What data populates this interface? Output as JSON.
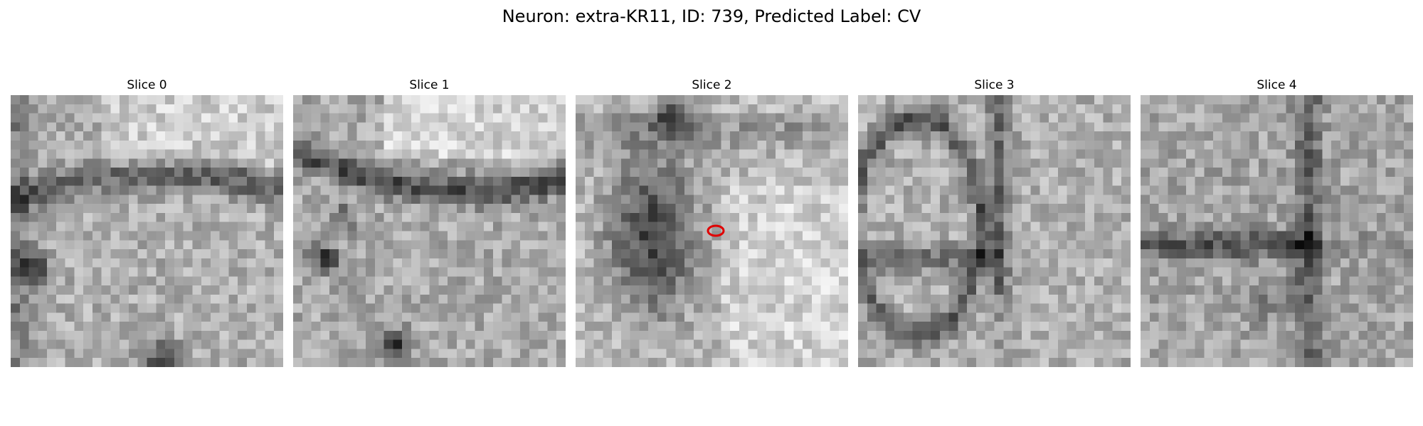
{
  "figure": {
    "title": "Neuron: extra-KR11, ID: 739, Predicted Label: CV"
  },
  "slices": [
    {
      "label": "Slice 0",
      "image_type": "grayscale-em-patch",
      "marker": false
    },
    {
      "label": "Slice 1",
      "image_type": "grayscale-em-patch",
      "marker": false
    },
    {
      "label": "Slice 2",
      "image_type": "grayscale-em-patch",
      "marker": true
    },
    {
      "label": "Slice 3",
      "image_type": "grayscale-em-patch",
      "marker": false
    },
    {
      "label": "Slice 4",
      "image_type": "grayscale-em-patch",
      "marker": false
    }
  ],
  "colors": {
    "marker": "#e00000",
    "background": "#ffffff"
  }
}
